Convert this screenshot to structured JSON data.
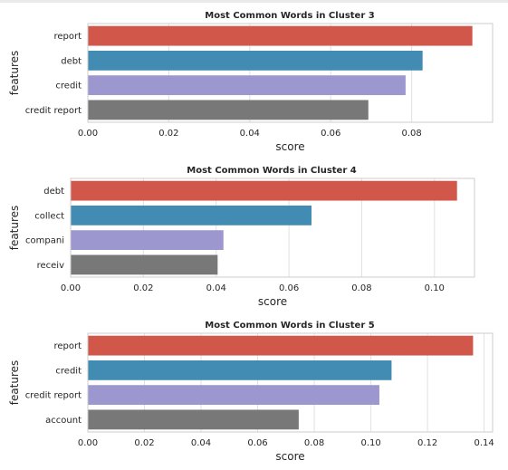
{
  "chart_data": [
    {
      "type": "bar",
      "orientation": "horizontal",
      "title": "Most Common Words in Cluster 3",
      "xlabel": "score",
      "ylabel": "features",
      "categories": [
        "report",
        "debt",
        "credit",
        "credit report"
      ],
      "values": [
        0.095,
        0.0827,
        0.0785,
        0.0693
      ],
      "xlim": [
        0,
        0.1
      ],
      "xticks": [
        "0.00",
        "0.02",
        "0.04",
        "0.06",
        "0.08"
      ],
      "grid": true,
      "colors": [
        "#d0574a",
        "#428cb4",
        "#9d97cf",
        "#787878"
      ]
    },
    {
      "type": "bar",
      "orientation": "horizontal",
      "title": "Most Common Words in Cluster 4",
      "xlabel": "score",
      "ylabel": "features",
      "categories": [
        "debt",
        "collect",
        "compani",
        "receiv"
      ],
      "values": [
        0.1062,
        0.0662,
        0.042,
        0.0404
      ],
      "xlim": [
        0,
        0.111
      ],
      "xticks": [
        "0.00",
        "0.02",
        "0.04",
        "0.06",
        "0.08",
        "0.10"
      ],
      "grid": true,
      "colors": [
        "#d0574a",
        "#428cb4",
        "#9d97cf",
        "#787878"
      ]
    },
    {
      "type": "bar",
      "orientation": "horizontal",
      "title": "Most Common Words in Cluster 5",
      "xlabel": "score",
      "ylabel": "features",
      "categories": [
        "report",
        "credit",
        "credit report",
        "account"
      ],
      "values": [
        0.1361,
        0.1073,
        0.103,
        0.0745
      ],
      "xlim": [
        0,
        0.143
      ],
      "xticks": [
        "0.00",
        "0.02",
        "0.04",
        "0.06",
        "0.08",
        "0.10",
        "0.12",
        "0.14"
      ],
      "grid": true,
      "colors": [
        "#d0574a",
        "#428cb4",
        "#9d97cf",
        "#787878"
      ]
    }
  ]
}
